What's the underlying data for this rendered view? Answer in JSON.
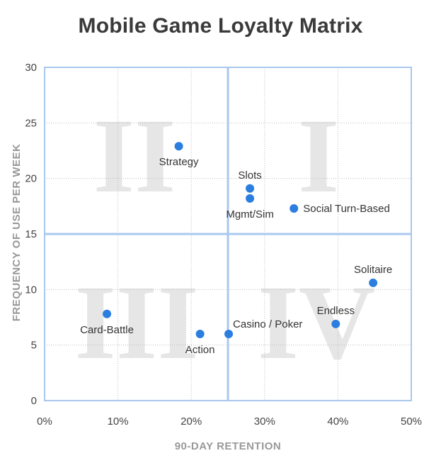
{
  "chart_data": {
    "type": "scatter",
    "title": "Mobile Game Loyalty Matrix",
    "xlabel": "90-DAY RETENTION",
    "ylabel": "FREQUENCY OF USE PER WEEK",
    "xlim": [
      0,
      50
    ],
    "ylim": [
      0,
      30
    ],
    "x_ticks": [
      "0%",
      "10%",
      "20%",
      "30%",
      "40%",
      "50%"
    ],
    "y_ticks": [
      "0",
      "5",
      "10",
      "15",
      "20",
      "25",
      "30"
    ],
    "divider": {
      "x": 25,
      "y": 15
    },
    "grid": true,
    "quadrant_labels": [
      "I",
      "II",
      "III",
      "IV"
    ],
    "marker_color": "#2b7ee0",
    "frame_color": "#a9c8ef",
    "points": [
      {
        "label": "Strategy",
        "x": 18.3,
        "y": 22.9,
        "label_pos": "below"
      },
      {
        "label": "Slots",
        "x": 28,
        "y": 19.1,
        "label_pos": "above"
      },
      {
        "label": "Mgmt/Sim",
        "x": 28,
        "y": 18.2,
        "label_pos": "below"
      },
      {
        "label": "Social Turn-Based",
        "x": 34,
        "y": 17.3,
        "label_pos": "right"
      },
      {
        "label": "Solitaire",
        "x": 44.8,
        "y": 10.6,
        "label_pos": "above"
      },
      {
        "label": "Card-Battle",
        "x": 8.5,
        "y": 7.8,
        "label_pos": "below"
      },
      {
        "label": "Endless",
        "x": 39.7,
        "y": 6.9,
        "label_pos": "above"
      },
      {
        "label": "Action",
        "x": 21.2,
        "y": 6,
        "label_pos": "below"
      },
      {
        "label": "Casino / Poker",
        "x": 25.1,
        "y": 6,
        "label_pos": "above-right"
      }
    ]
  }
}
